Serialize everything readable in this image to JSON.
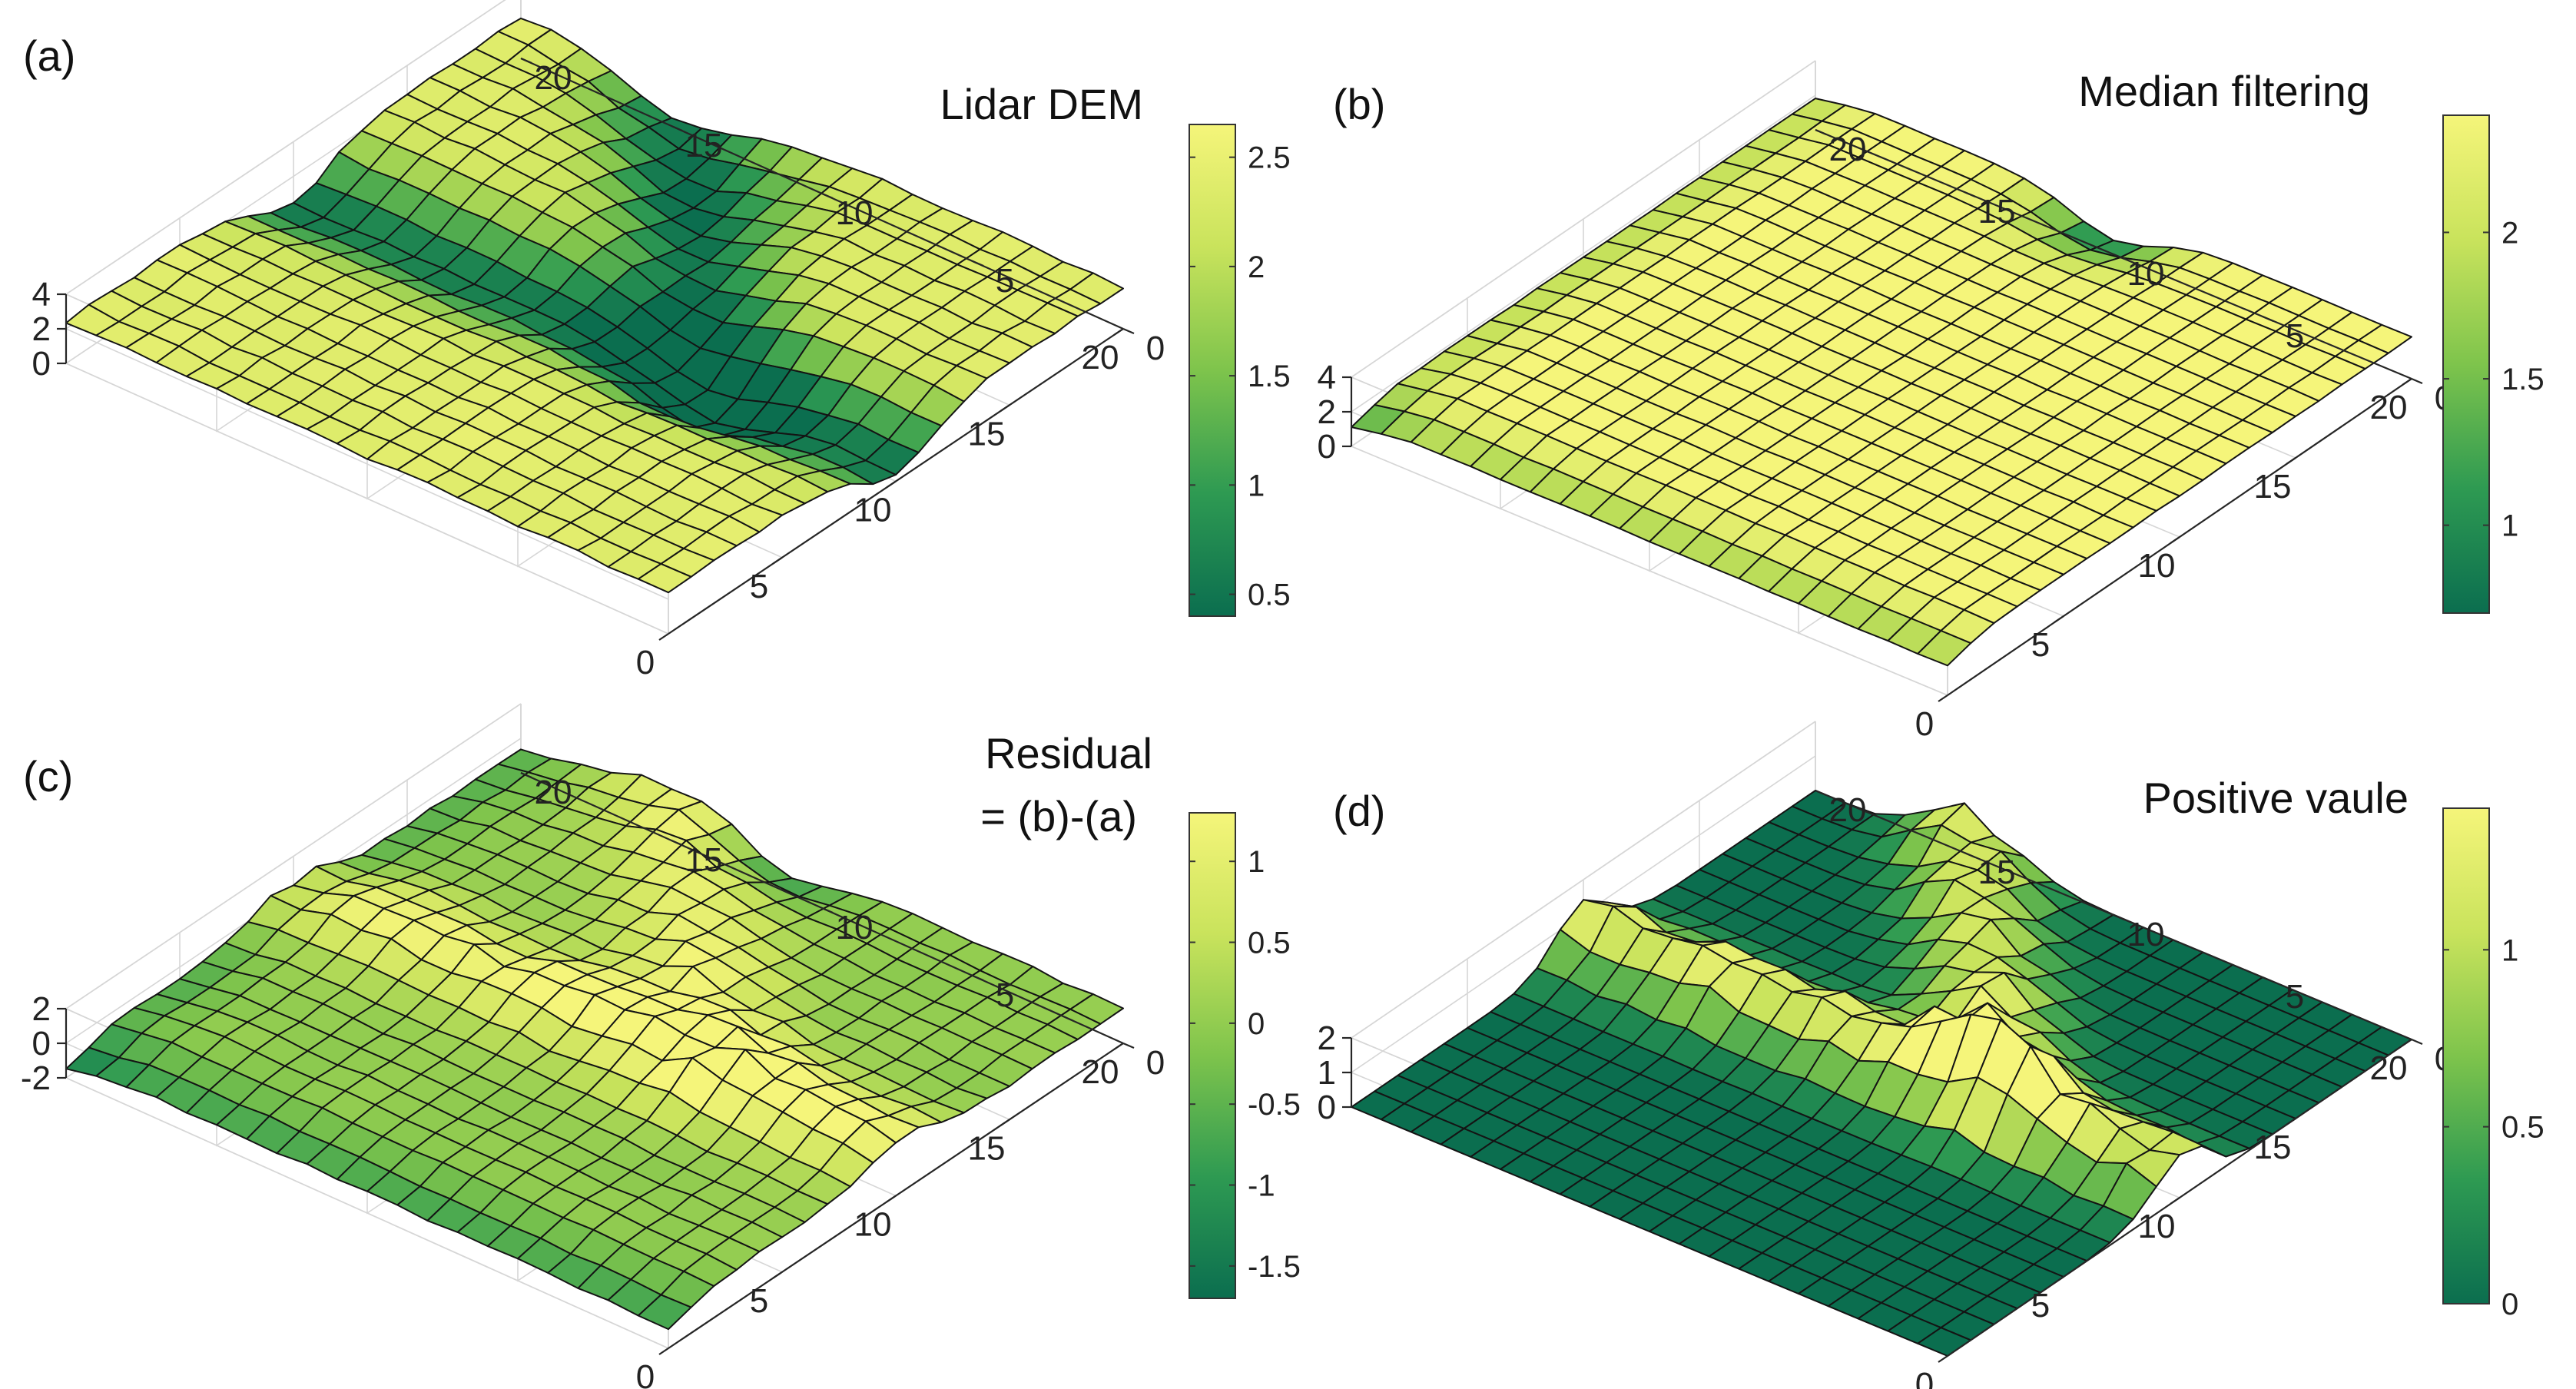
{
  "figure": {
    "colormap": [
      "#0b6e4f",
      "#2e9a52",
      "#7ec44c",
      "#c9e35c",
      "#f5f57a"
    ],
    "grid": {
      "n": 21,
      "x_ticks": [
        0,
        5,
        10,
        15,
        20
      ],
      "y_ticks": [
        0,
        5,
        10,
        15,
        20
      ]
    }
  },
  "chart_data": [
    {
      "id": "a",
      "type": "surface",
      "panel_label": "(a)",
      "title": "Lidar DEM",
      "title_lines": [
        "Lidar DEM"
      ],
      "zlim": [
        0,
        4
      ],
      "z_ticks": [
        0,
        2,
        4
      ],
      "z_tick_labels": [
        "0",
        "2",
        "4"
      ],
      "x_tick_labels": [
        "0",
        "5",
        "10",
        "15",
        "20"
      ],
      "y_tick_labels": [
        "0",
        "5",
        "10",
        "15",
        "20"
      ],
      "clim": [
        0.4,
        2.65
      ],
      "colorbar_ticks": [
        0.5,
        1,
        1.5,
        2,
        2.5
      ],
      "colorbar_tick_labels": [
        "0.5",
        "1",
        "1.5",
        "2",
        "2.5"
      ],
      "surface": {
        "base": 2.4,
        "noise": 0.12,
        "features": [
          {
            "kind": "valley_line",
            "x1": 10,
            "y1": 0,
            "x2": 10,
            "y2": 20,
            "depth": 1.9,
            "width": 1.6
          },
          {
            "kind": "valley_line",
            "x1": 10,
            "y1": 6,
            "x2": 20,
            "y2": 15,
            "depth": 1.8,
            "width": 1.5
          },
          {
            "kind": "pit",
            "x": 18,
            "y": 11,
            "depth": 0.5,
            "width": 2.0
          }
        ]
      }
    },
    {
      "id": "b",
      "type": "surface",
      "panel_label": "(b)",
      "title": "Median filtering",
      "title_lines": [
        "Median filtering"
      ],
      "zlim": [
        0,
        4
      ],
      "z_ticks": [
        0,
        2,
        4
      ],
      "z_tick_labels": [
        "0",
        "2",
        "4"
      ],
      "x_tick_labels": [
        "0",
        "5",
        "10",
        "15",
        "20"
      ],
      "y_tick_labels": [
        "0",
        "5",
        "10",
        "15",
        "20"
      ],
      "clim": [
        0.7,
        2.4
      ],
      "colorbar_ticks": [
        1,
        1.5,
        2
      ],
      "colorbar_tick_labels": [
        "1",
        "1.5",
        "2"
      ],
      "surface": {
        "base": 2.4,
        "noise": 0.03,
        "features": [
          {
            "kind": "edge",
            "side": "x0",
            "depth": 0.7,
            "width": 0.8
          },
          {
            "kind": "edge",
            "side": "y20",
            "depth": 0.6,
            "width": 0.8
          },
          {
            "kind": "pit",
            "x": 20,
            "y": 10,
            "depth": 1.6,
            "width": 1.4
          }
        ]
      }
    },
    {
      "id": "c",
      "type": "surface",
      "panel_label": "(c)",
      "title": "Residual = (b)-(a)",
      "title_lines": [
        "Residual",
        "= (b)-(a)"
      ],
      "zlim": [
        -2,
        2
      ],
      "z_ticks": [
        -2,
        0,
        2
      ],
      "z_tick_labels": [
        "-2",
        "0",
        "2"
      ],
      "x_tick_labels": [
        "0",
        "5",
        "10",
        "15",
        "20"
      ],
      "y_tick_labels": [
        "0",
        "5",
        "10",
        "15",
        "20"
      ],
      "clim": [
        -1.7,
        1.3
      ],
      "colorbar_ticks": [
        -1.5,
        -1,
        -0.5,
        0,
        0.5,
        1
      ],
      "colorbar_tick_labels": [
        "-1.5",
        "-1",
        "-0.5",
        "0",
        "0.5",
        "1"
      ],
      "surface": {
        "base": 0.0,
        "noise": 0.1,
        "features": [
          {
            "kind": "ridge_line",
            "x1": 10,
            "y1": 0,
            "x2": 10,
            "y2": 20,
            "height": 1.3,
            "width": 1.4
          },
          {
            "kind": "ridge_line",
            "x1": 10,
            "y1": 6,
            "x2": 20,
            "y2": 15,
            "height": 1.2,
            "width": 1.4
          },
          {
            "kind": "edge",
            "side": "x0",
            "depth": 0.8,
            "width": 1.0
          },
          {
            "kind": "edge",
            "side": "y20",
            "depth": 0.6,
            "width": 1.0
          },
          {
            "kind": "pit",
            "x": 20,
            "y": 11,
            "depth": 1.2,
            "width": 1.2
          }
        ]
      }
    },
    {
      "id": "d",
      "type": "surface",
      "panel_label": "(d)",
      "title": "Positive vaule",
      "title_lines": [
        "Positive vaule"
      ],
      "zlim": [
        0,
        2
      ],
      "z_ticks": [
        0,
        1,
        2
      ],
      "z_tick_labels": [
        "0",
        "1",
        "2"
      ],
      "x_tick_labels": [
        "0",
        "5",
        "10",
        "15",
        "20"
      ],
      "y_tick_labels": [
        "0",
        "5",
        "10",
        "15",
        "20"
      ],
      "clim": [
        0,
        1.4
      ],
      "colorbar_ticks": [
        0,
        0.5,
        1
      ],
      "colorbar_tick_labels": [
        "0",
        "0.5",
        "1"
      ],
      "surface": {
        "base": 0.0,
        "noise": 0.0,
        "clamp_min": 0,
        "features": [
          {
            "kind": "ridge_line",
            "x1": 10,
            "y1": 0,
            "x2": 10,
            "y2": 20,
            "height": 1.35,
            "width": 1.2
          },
          {
            "kind": "ridge_line",
            "x1": 10,
            "y1": 6,
            "x2": 20,
            "y2": 15,
            "height": 1.25,
            "width": 1.2
          }
        ]
      }
    }
  ]
}
